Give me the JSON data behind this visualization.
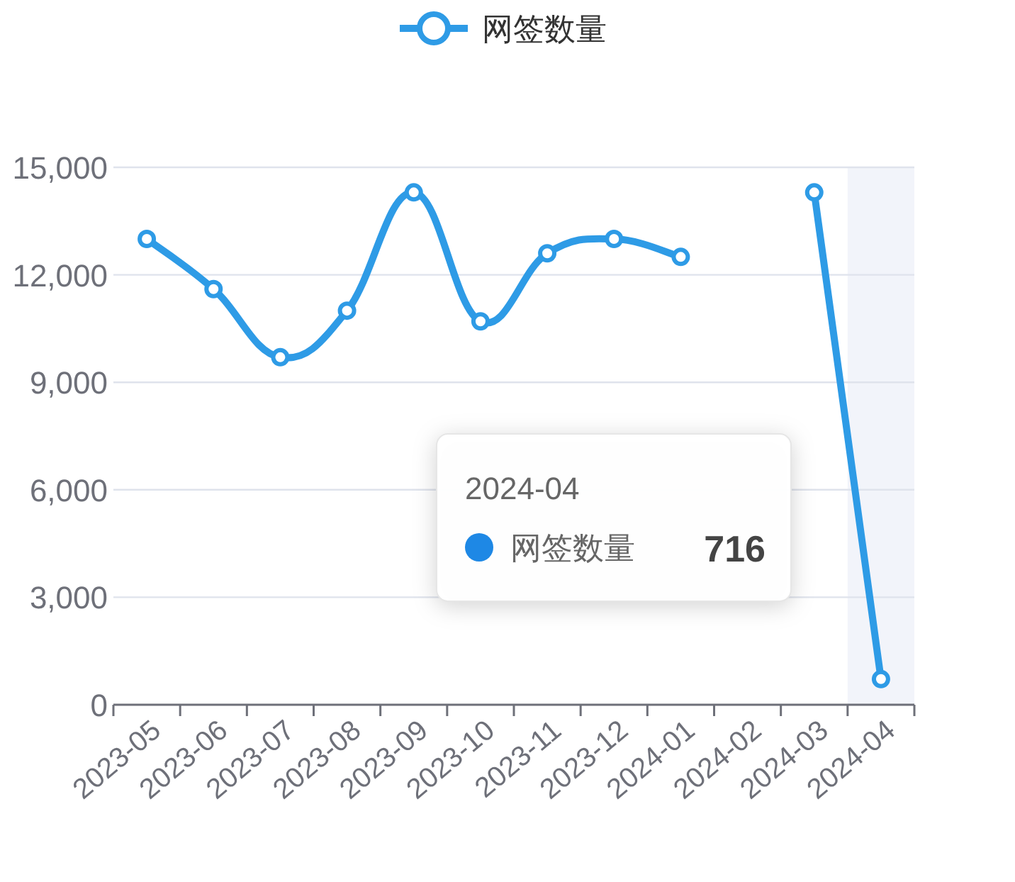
{
  "chart_data": {
    "type": "line",
    "categories": [
      "2023-05",
      "2023-06",
      "2023-07",
      "2023-08",
      "2023-09",
      "2023-10",
      "2023-11",
      "2023-12",
      "2024-01",
      "2024-02",
      "2024-03",
      "2024-04"
    ],
    "series": [
      {
        "name": "网签数量",
        "color": "#2e9be6",
        "values": [
          13000,
          11600,
          9700,
          11000,
          14300,
          10700,
          12600,
          13000,
          12500,
          null,
          14300,
          716
        ]
      }
    ],
    "ylim": [
      0,
      15000
    ],
    "yticks": [
      {
        "value": 0,
        "label": "0"
      },
      {
        "value": 3000,
        "label": "3,000"
      },
      {
        "value": 6000,
        "label": "6,000"
      },
      {
        "value": 9000,
        "label": "9,000"
      },
      {
        "value": 12000,
        "label": "12,000"
      },
      {
        "value": 15000,
        "label": "15,000"
      }
    ],
    "grid": "y",
    "legend": "top",
    "marker": "circle",
    "line_style": "solid",
    "bands": [
      {
        "axis": "x",
        "from": "2024-04",
        "to": "2024-04",
        "color": "#f2f4fa"
      }
    ],
    "annotations": [
      "2024-04",
      "网签数量",
      "716"
    ]
  }
}
